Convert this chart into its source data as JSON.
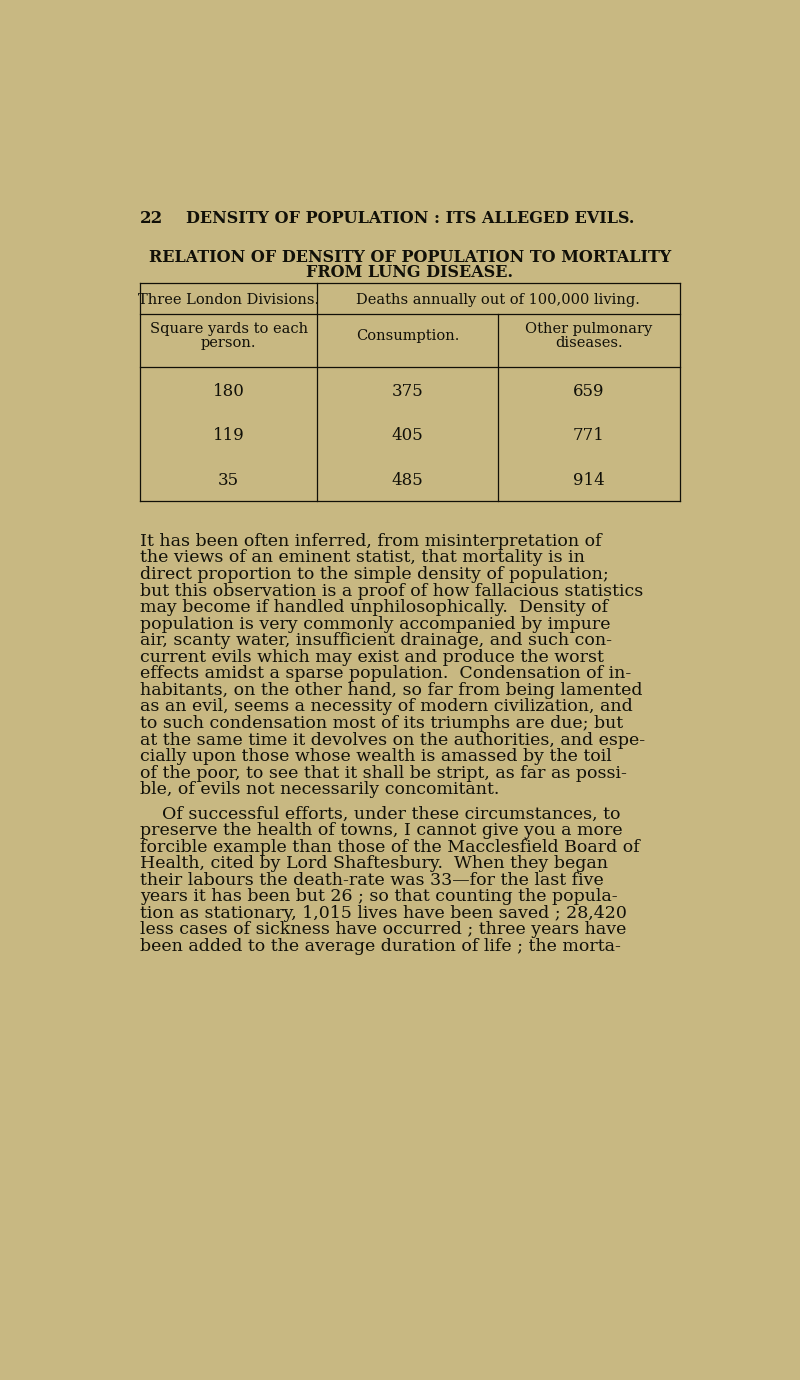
{
  "bg_color": "#c8b882",
  "text_color": "#111008",
  "page_number": "22",
  "header_line": "DENSITY OF POPULATION : ITS ALLEGED EVILS.",
  "table_title_line1": "RELATION OF DENSITY OF POPULATION TO MORTALITY",
  "table_title_line2": "FROM LUNG DISEASE.",
  "col1_header1": "Three London Divisions.",
  "col23_header": "Deaths annually out of 100,000 living.",
  "col1_header2_line1": "Square yards to each",
  "col1_header2_line2": "person.",
  "col2_header": "Consumption.",
  "col3_header_line1": "Other pulmonary",
  "col3_header_line2": "diseases.",
  "data_rows": [
    [
      180,
      375,
      659
    ],
    [
      119,
      405,
      771
    ],
    [
      35,
      485,
      914
    ]
  ],
  "p1_lines": [
    "It has been often inferred, from misinterpretation of",
    "the views of an eminent statist, that mortality is in",
    "direct proportion to the simple density of population;",
    "but this observation is a proof of how fallacious statistics",
    "may become if handled unphilosophically.  Density of",
    "population is very commonly accompanied by impure",
    "air, scanty water, insufficient drainage, and such con-",
    "current evils which may exist and produce the worst",
    "effects amidst a sparse population.  Condensation of in-",
    "habitants, on the other hand, so far from being lamented",
    "as an evil, seems a necessity of modern civilization, and",
    "to such condensation most of its triumphs are due; but",
    "at the same time it devolves on the authorities, and espe-",
    "cially upon those whose wealth is amassed by the toil",
    "of the poor, to see that it shall be stript, as far as possi-",
    "ble, of evils not necessarily concomitant."
  ],
  "p2_lines": [
    "    Of successful efforts, under these circumstances, to",
    "preserve the health of towns, I cannot give you a more",
    "forcible example than those of the Macclesfield Board of",
    "Health, cited by Lord Shaftesbury.  When they began",
    "their labours the death-rate was 33—for the last five",
    "years it has been but 26 ; so that counting the popula-",
    "tion as stationary, 1,015 lives have been saved ; 28,420",
    "less cases of sickness have occurred ; three years have",
    "been added to the average duration of life ; the morta-"
  ]
}
